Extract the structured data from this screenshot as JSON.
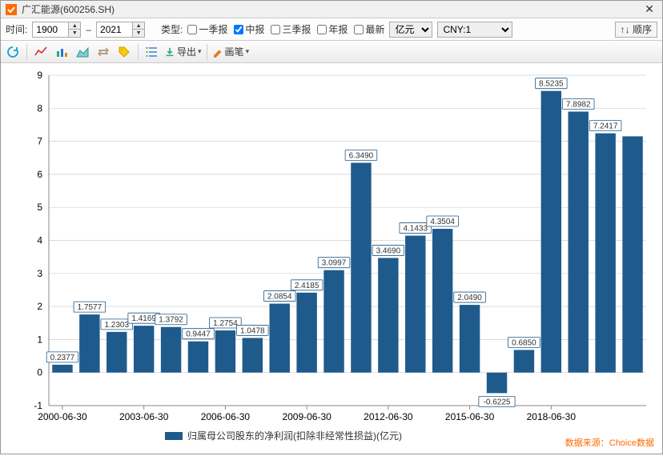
{
  "window": {
    "title": "广汇能源(600256.SH)"
  },
  "controls": {
    "time_label": "时间:",
    "year_from": "1900",
    "range_sep": "–",
    "year_to": "2021",
    "type_label": "类型:",
    "checkboxes": [
      {
        "label": "一季报",
        "checked": false
      },
      {
        "label": "中报",
        "checked": true
      },
      {
        "label": "三季报",
        "checked": false
      },
      {
        "label": "年报",
        "checked": false
      },
      {
        "label": "最新",
        "checked": false
      }
    ],
    "unit_options": [
      "亿元"
    ],
    "unit_selected": "亿元",
    "currency_options": [
      "CNY:1"
    ],
    "currency_selected": "CNY:1",
    "order_button": "↑↓ 顺序"
  },
  "toolbar": {
    "export_label": "导出",
    "brush_label": "画笔"
  },
  "chart": {
    "type": "bar",
    "bar_color": "#1f5a8c",
    "bg_color": "#ffffff",
    "grid_color": "#d0d0d0",
    "axis_color": "#888888",
    "label_box_stroke": "#1f5a8c",
    "ylim": [
      -1,
      9
    ],
    "ytick_step": 1,
    "x_categories": [
      "2000-06-30",
      "2001-06-30",
      "2002-06-30",
      "2003-06-30",
      "2004-06-30",
      "2005-06-30",
      "2006-06-30",
      "2007-06-30",
      "2008-06-30",
      "2009-06-30",
      "2010-06-30",
      "2011-06-30",
      "2012-06-30",
      "2013-06-30",
      "2014-06-30",
      "2015-06-30",
      "2016-06-30",
      "2017-06-30",
      "2018-06-30",
      "2019-06-30",
      "2020-06-30",
      "2021-06-30"
    ],
    "x_tick_labels": [
      "2000-06-30",
      "2003-06-30",
      "2006-06-30",
      "2009-06-30",
      "2012-06-30",
      "2015-06-30",
      "2018-06-30"
    ],
    "values": [
      0.2377,
      1.7577,
      1.2303,
      1.4169,
      1.3792,
      0.9447,
      1.2754,
      1.0478,
      2.0854,
      2.4185,
      3.0997,
      6.349,
      3.469,
      4.1433,
      4.3504,
      2.049,
      -0.6225,
      0.685,
      8.5235,
      7.8982,
      7.2417,
      7.15
    ],
    "value_labels": [
      "0.2377",
      "1.7577",
      "1.2303",
      "1.4169",
      "1.3792",
      "0.9447",
      "1.2754",
      "1.0478",
      "2.0854",
      "2.4185",
      "3.0997",
      "6.3490",
      "3.4690",
      "4.1433",
      "4.3504",
      "2.0490",
      "-0.6225",
      "0.6850",
      "8.5235",
      "7.8982",
      "7.2417",
      ""
    ],
    "legend": "归属母公司股东的净利润(扣除非经常性损益)(亿元)",
    "credit": "数据来源：Choice数据"
  }
}
